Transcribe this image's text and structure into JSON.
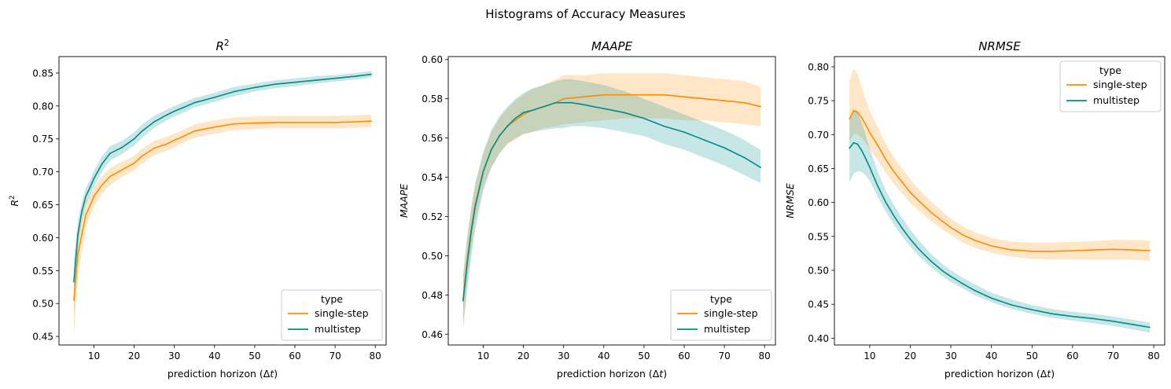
{
  "figure": {
    "suptitle": "Histograms of Accuracy Measures"
  },
  "chart_data": [
    {
      "type": "line",
      "title": "R²",
      "ylabel": "R²",
      "xlabel": "prediction horizon (Δt)",
      "xlim": [
        1.3,
        82.7
      ],
      "ylim": [
        0.437,
        0.875
      ],
      "xticks": [
        10,
        20,
        30,
        40,
        50,
        60,
        70,
        80
      ],
      "yticks": [
        0.45,
        0.5,
        0.55,
        0.6,
        0.65,
        0.7,
        0.75,
        0.8,
        0.85
      ],
      "ytick_decimals": 2,
      "legend": {
        "title": "type",
        "position": "lower right"
      },
      "series": [
        {
          "name": "single-step",
          "color": "#ff8c00",
          "x": [
            5,
            6,
            7,
            8,
            9,
            10,
            12,
            14,
            17,
            20,
            22,
            25,
            28,
            30,
            32,
            35,
            40,
            45,
            50,
            55,
            60,
            65,
            70,
            75,
            79
          ],
          "y": [
            0.505,
            0.575,
            0.605,
            0.635,
            0.648,
            0.663,
            0.68,
            0.693,
            0.703,
            0.713,
            0.724,
            0.736,
            0.742,
            0.748,
            0.753,
            0.762,
            0.768,
            0.773,
            0.774,
            0.775,
            0.775,
            0.775,
            0.775,
            0.776,
            0.777
          ],
          "lower": [
            0.45,
            0.54,
            0.58,
            0.615,
            0.632,
            0.648,
            0.667,
            0.68,
            0.692,
            0.702,
            0.713,
            0.725,
            0.732,
            0.738,
            0.743,
            0.752,
            0.758,
            0.763,
            0.765,
            0.766,
            0.766,
            0.766,
            0.766,
            0.767,
            0.768
          ],
          "upper": [
            0.545,
            0.605,
            0.628,
            0.655,
            0.665,
            0.678,
            0.693,
            0.706,
            0.715,
            0.724,
            0.735,
            0.747,
            0.753,
            0.758,
            0.763,
            0.772,
            0.778,
            0.783,
            0.784,
            0.785,
            0.785,
            0.785,
            0.785,
            0.786,
            0.787
          ]
        },
        {
          "name": "multistep",
          "color": "#008b8b",
          "x": [
            5,
            6,
            7,
            8,
            9,
            10,
            12,
            14,
            17,
            20,
            22,
            25,
            28,
            30,
            32,
            35,
            40,
            45,
            50,
            55,
            60,
            65,
            70,
            75,
            79
          ],
          "y": [
            0.533,
            0.605,
            0.64,
            0.663,
            0.676,
            0.69,
            0.712,
            0.728,
            0.737,
            0.75,
            0.762,
            0.776,
            0.786,
            0.792,
            0.797,
            0.805,
            0.813,
            0.822,
            0.828,
            0.833,
            0.836,
            0.839,
            0.842,
            0.845,
            0.848
          ],
          "lower": [
            0.48,
            0.585,
            0.625,
            0.65,
            0.664,
            0.678,
            0.7,
            0.717,
            0.727,
            0.74,
            0.752,
            0.767,
            0.778,
            0.784,
            0.789,
            0.798,
            0.806,
            0.815,
            0.822,
            0.827,
            0.83,
            0.834,
            0.837,
            0.84,
            0.843
          ],
          "upper": [
            0.565,
            0.625,
            0.655,
            0.676,
            0.688,
            0.702,
            0.724,
            0.739,
            0.747,
            0.76,
            0.772,
            0.785,
            0.794,
            0.8,
            0.805,
            0.812,
            0.82,
            0.829,
            0.834,
            0.839,
            0.842,
            0.845,
            0.847,
            0.85,
            0.853
          ]
        }
      ]
    },
    {
      "type": "line",
      "title": "MAAPE",
      "ylabel": "MAAPE",
      "xlabel": "prediction horizon (Δt)",
      "xlim": [
        1.3,
        82.7
      ],
      "ylim": [
        0.4545,
        0.6015
      ],
      "xticks": [
        10,
        20,
        30,
        40,
        50,
        60,
        70,
        80
      ],
      "yticks": [
        0.46,
        0.48,
        0.5,
        0.52,
        0.54,
        0.56,
        0.58,
        0.6
      ],
      "ytick_decimals": 2,
      "legend": {
        "title": "type",
        "position": "lower right"
      },
      "series": [
        {
          "name": "single-step",
          "color": "#ff8c00",
          "x": [
            5,
            6,
            7,
            8,
            10,
            12,
            14,
            16,
            18,
            20,
            22,
            25,
            28,
            30,
            35,
            40,
            45,
            50,
            55,
            60,
            65,
            70,
            75,
            79
          ],
          "y": [
            0.478,
            0.497,
            0.513,
            0.526,
            0.543,
            0.554,
            0.561,
            0.566,
            0.569,
            0.572,
            0.574,
            0.576,
            0.578,
            0.58,
            0.581,
            0.582,
            0.582,
            0.582,
            0.582,
            0.581,
            0.58,
            0.579,
            0.578,
            0.576
          ],
          "lower": [
            0.465,
            0.485,
            0.502,
            0.517,
            0.535,
            0.545,
            0.552,
            0.557,
            0.559,
            0.562,
            0.563,
            0.565,
            0.566,
            0.567,
            0.568,
            0.569,
            0.57,
            0.57,
            0.57,
            0.569,
            0.569,
            0.568,
            0.567,
            0.566
          ],
          "upper": [
            0.49,
            0.509,
            0.524,
            0.536,
            0.552,
            0.563,
            0.57,
            0.575,
            0.579,
            0.582,
            0.585,
            0.587,
            0.59,
            0.592,
            0.592,
            0.593,
            0.593,
            0.593,
            0.593,
            0.592,
            0.591,
            0.59,
            0.589,
            0.586
          ]
        },
        {
          "name": "multistep",
          "color": "#008b8b",
          "x": [
            5,
            6,
            7,
            8,
            10,
            12,
            14,
            16,
            18,
            20,
            22,
            25,
            28,
            30,
            32,
            35,
            40,
            45,
            50,
            55,
            60,
            65,
            70,
            75,
            79
          ],
          "y": [
            0.477,
            0.496,
            0.512,
            0.525,
            0.543,
            0.554,
            0.561,
            0.566,
            0.57,
            0.573,
            0.574,
            0.576,
            0.578,
            0.578,
            0.578,
            0.577,
            0.575,
            0.573,
            0.57,
            0.566,
            0.563,
            0.559,
            0.555,
            0.55,
            0.545
          ],
          "lower": [
            0.463,
            0.482,
            0.499,
            0.513,
            0.533,
            0.545,
            0.552,
            0.557,
            0.56,
            0.562,
            0.563,
            0.564,
            0.565,
            0.565,
            0.566,
            0.566,
            0.565,
            0.563,
            0.561,
            0.557,
            0.554,
            0.55,
            0.546,
            0.541,
            0.537
          ],
          "upper": [
            0.49,
            0.509,
            0.524,
            0.537,
            0.553,
            0.564,
            0.571,
            0.576,
            0.58,
            0.583,
            0.585,
            0.587,
            0.589,
            0.59,
            0.59,
            0.589,
            0.587,
            0.584,
            0.58,
            0.576,
            0.572,
            0.568,
            0.564,
            0.559,
            0.554
          ]
        }
      ]
    },
    {
      "type": "line",
      "title": "NRMSE",
      "ylabel": "NRMSE",
      "xlabel": "prediction horizon (Δt)",
      "xlim": [
        1.3,
        82.7
      ],
      "ylim": [
        0.39,
        0.815
      ],
      "xticks": [
        10,
        20,
        30,
        40,
        50,
        60,
        70,
        80
      ],
      "yticks": [
        0.4,
        0.45,
        0.5,
        0.55,
        0.6,
        0.65,
        0.7,
        0.75,
        0.8
      ],
      "ytick_decimals": 2,
      "legend": {
        "title": "type",
        "position": "upper right"
      },
      "series": [
        {
          "name": "single-step",
          "color": "#ff8c00",
          "x": [
            5,
            6,
            7,
            8,
            9,
            10,
            12,
            14,
            16,
            18,
            20,
            22,
            25,
            28,
            30,
            33,
            36,
            40,
            45,
            50,
            55,
            60,
            65,
            70,
            75,
            79
          ],
          "y": [
            0.723,
            0.735,
            0.733,
            0.725,
            0.715,
            0.703,
            0.684,
            0.663,
            0.645,
            0.63,
            0.615,
            0.603,
            0.586,
            0.572,
            0.563,
            0.552,
            0.544,
            0.536,
            0.53,
            0.528,
            0.528,
            0.529,
            0.53,
            0.531,
            0.53,
            0.529
          ],
          "lower": [
            0.69,
            0.7,
            0.701,
            0.695,
            0.688,
            0.679,
            0.662,
            0.644,
            0.627,
            0.613,
            0.599,
            0.588,
            0.573,
            0.56,
            0.552,
            0.541,
            0.533,
            0.526,
            0.52,
            0.517,
            0.516,
            0.516,
            0.516,
            0.516,
            0.516,
            0.514
          ],
          "upper": [
            0.78,
            0.797,
            0.79,
            0.77,
            0.752,
            0.735,
            0.71,
            0.686,
            0.666,
            0.65,
            0.634,
            0.62,
            0.602,
            0.586,
            0.576,
            0.564,
            0.556,
            0.548,
            0.542,
            0.541,
            0.541,
            0.542,
            0.543,
            0.545,
            0.545,
            0.544
          ]
        },
        {
          "name": "multistep",
          "color": "#008b8b",
          "x": [
            5,
            6,
            7,
            8,
            9,
            10,
            12,
            14,
            16,
            18,
            20,
            22,
            25,
            28,
            30,
            33,
            36,
            40,
            45,
            50,
            55,
            60,
            65,
            70,
            75,
            79
          ],
          "y": [
            0.68,
            0.688,
            0.686,
            0.677,
            0.665,
            0.652,
            0.624,
            0.6,
            0.58,
            0.562,
            0.546,
            0.532,
            0.514,
            0.499,
            0.491,
            0.48,
            0.47,
            0.459,
            0.449,
            0.442,
            0.436,
            0.432,
            0.429,
            0.425,
            0.42,
            0.416
          ],
          "lower": [
            0.63,
            0.642,
            0.646,
            0.645,
            0.64,
            0.632,
            0.608,
            0.586,
            0.567,
            0.55,
            0.535,
            0.522,
            0.505,
            0.491,
            0.483,
            0.473,
            0.463,
            0.453,
            0.443,
            0.436,
            0.43,
            0.426,
            0.422,
            0.418,
            0.413,
            0.408
          ],
          "upper": [
            0.72,
            0.738,
            0.735,
            0.718,
            0.7,
            0.68,
            0.645,
            0.617,
            0.596,
            0.577,
            0.56,
            0.545,
            0.525,
            0.509,
            0.5,
            0.489,
            0.479,
            0.467,
            0.457,
            0.449,
            0.443,
            0.439,
            0.436,
            0.432,
            0.427,
            0.423
          ]
        }
      ]
    }
  ]
}
